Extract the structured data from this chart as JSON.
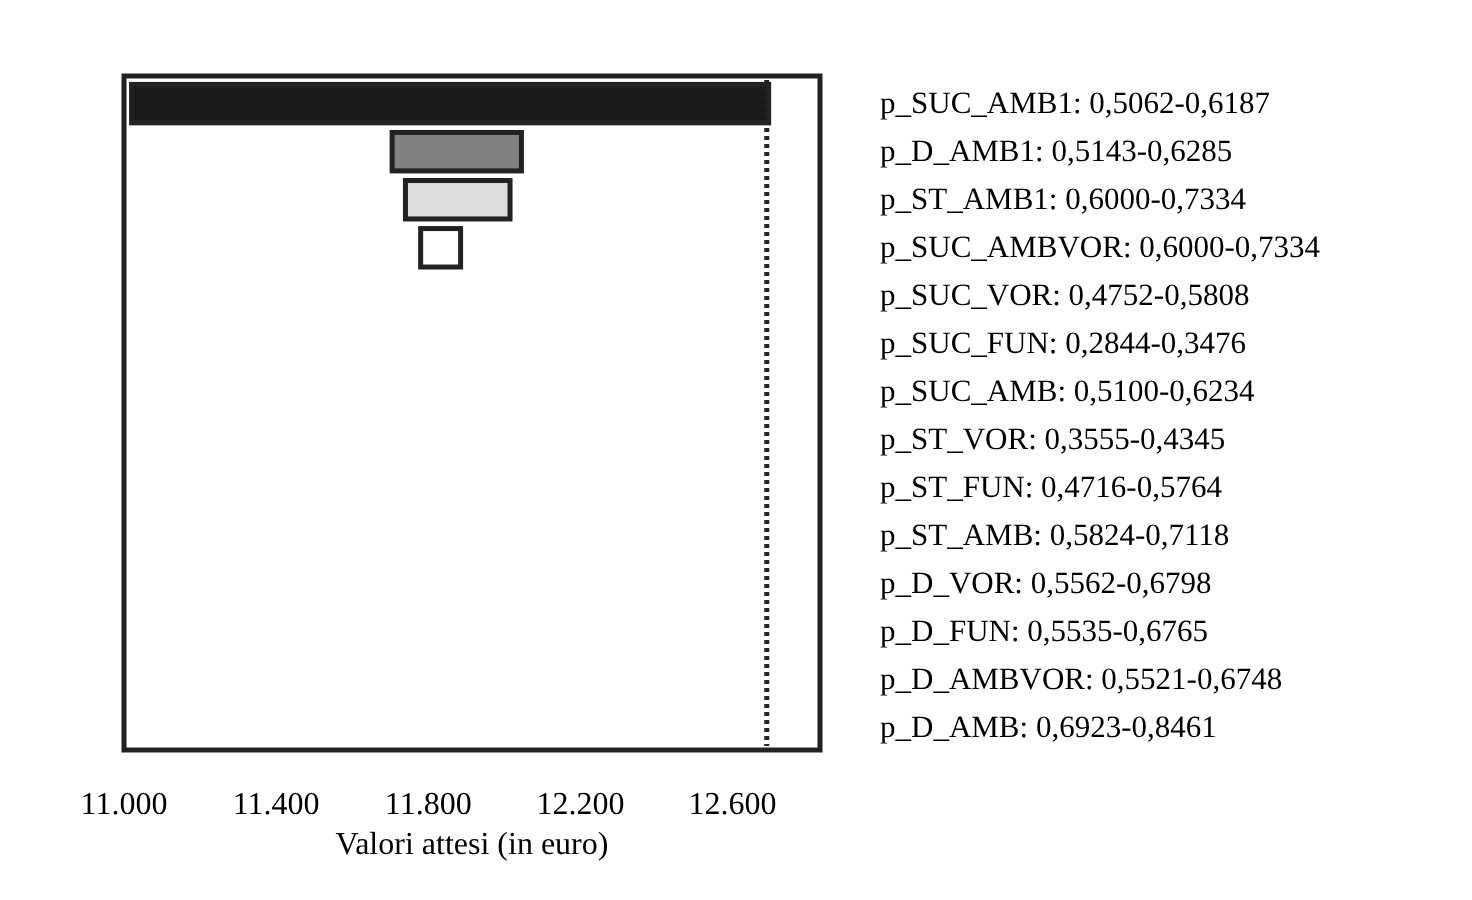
{
  "chart_data": {
    "type": "bar",
    "orientation": "horizontal",
    "xlabel": "Valori attesi (in euro)",
    "categories": [
      "p_SUC_AMB1: 0,5062-0,6187",
      "p_D_AMB1: 0,5143-0,6285",
      "p_ST_AMB1: 0,6000-0,7334",
      "p_SUC_AMBVOR: 0,6000-0,7334",
      "p_SUC_VOR: 0,4752-0,5808",
      "p_SUC_FUN: 0,2844-0,3476",
      "p_SUC_AMB: 0,5100-0,6234",
      "p_ST_VOR: 0,3555-0,4345",
      "p_ST_FUN: 0,4716-0,5764",
      "p_ST_AMB: 0,5824-0,7118",
      "p_D_VOR: 0,5562-0,6798",
      "p_D_FUN: 0,5535-0,6765",
      "p_D_AMBVOR: 0,5521-0,6748",
      "p_D_AMB: 0,6923-0,8461"
    ],
    "base": [
      11020,
      11705,
      11740,
      11780,
      null,
      null,
      null,
      null,
      null,
      null,
      null,
      null,
      null,
      null
    ],
    "values": [
      1675,
      340,
      275,
      105,
      null,
      null,
      null,
      null,
      null,
      null,
      null,
      null,
      null,
      null
    ],
    "colors": [
      "#1a1a1a",
      "#808080",
      "#dddddd",
      "#ffffff",
      null,
      null,
      null,
      null,
      null,
      null,
      null,
      null,
      null,
      null
    ],
    "xlim": [
      11000,
      12830
    ],
    "xticks": [
      {
        "value": 11000,
        "label": "11.000"
      },
      {
        "value": 11400,
        "label": "11.400"
      },
      {
        "value": 11800,
        "label": "11.800"
      },
      {
        "value": 12200,
        "label": "12.200"
      },
      {
        "value": 12600,
        "label": "12.600"
      }
    ],
    "ref_lines": [
      {
        "axis": "x",
        "value": 12690,
        "color": "#222222",
        "line_style": "dotted"
      }
    ],
    "grid": false
  }
}
